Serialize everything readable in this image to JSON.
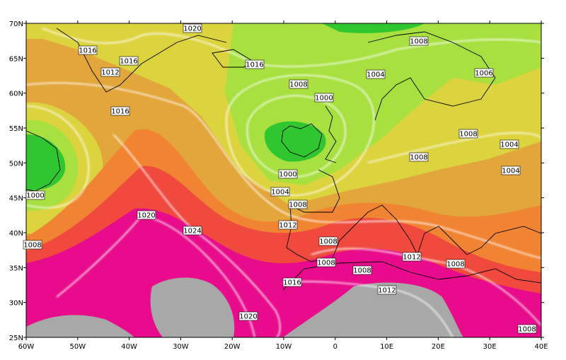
{
  "map": {
    "lat_labels": [
      "70N",
      "65N",
      "60N",
      "55N",
      "50N",
      "45N",
      "40N",
      "35N",
      "30N",
      "25N"
    ],
    "lon_labels": [
      "60W",
      "50W",
      "40W",
      "30W",
      "20W",
      "10W",
      "0",
      "10E",
      "20E",
      "30E",
      "40E"
    ],
    "isobar_labels": [
      "1020",
      "1016",
      "1016",
      "1012",
      "1016",
      "1008",
      "1004",
      "1006",
      "1008",
      "1000",
      "1016",
      "1008",
      "1004",
      "1008",
      "1000",
      "1004",
      "1004",
      "1000",
      "1008",
      "1020",
      "1024",
      "1012",
      "1008",
      "1008",
      "1012",
      "1008",
      "1008",
      "1008",
      "1016",
      "1012",
      "1020",
      "1008"
    ]
  }
}
